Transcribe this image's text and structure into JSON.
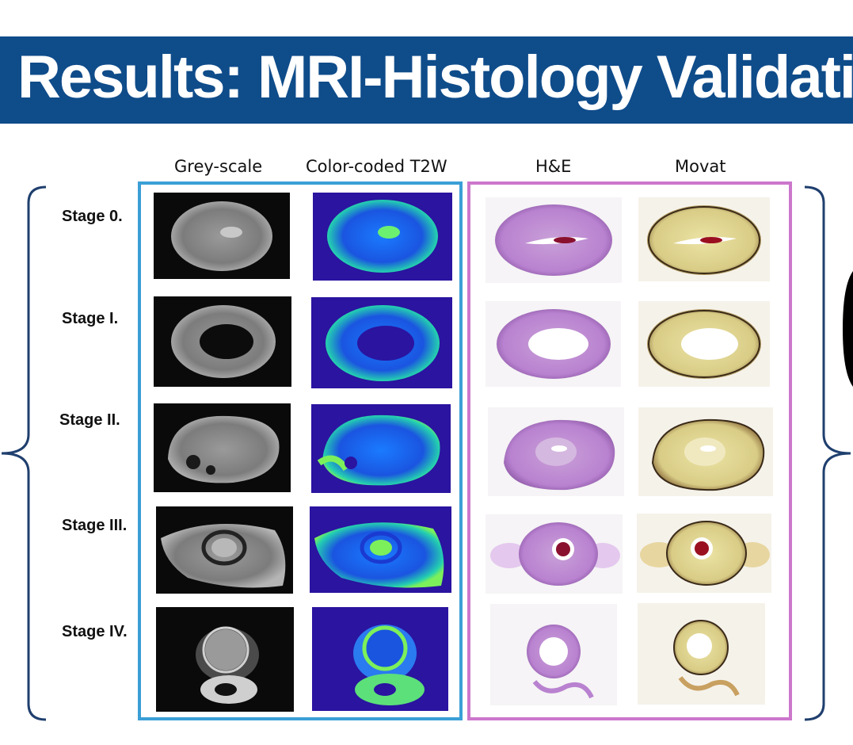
{
  "title": "Results: MRI-Histology Validation",
  "columns": {
    "grey_scale": "Grey-scale",
    "color_t2w": "Color-coded T2W",
    "he": "H&E",
    "movat": "Movat"
  },
  "stages": [
    {
      "label": "Stage 0."
    },
    {
      "label": "Stage I."
    },
    {
      "label": "Stage II."
    },
    {
      "label": "Stage III."
    },
    {
      "label": "Stage IV."
    }
  ],
  "colors": {
    "banner": "#0f4c8a",
    "mri_box": "#3a9fd6",
    "histology_box": "#cc77cc",
    "brace": "#1f3f6e"
  }
}
